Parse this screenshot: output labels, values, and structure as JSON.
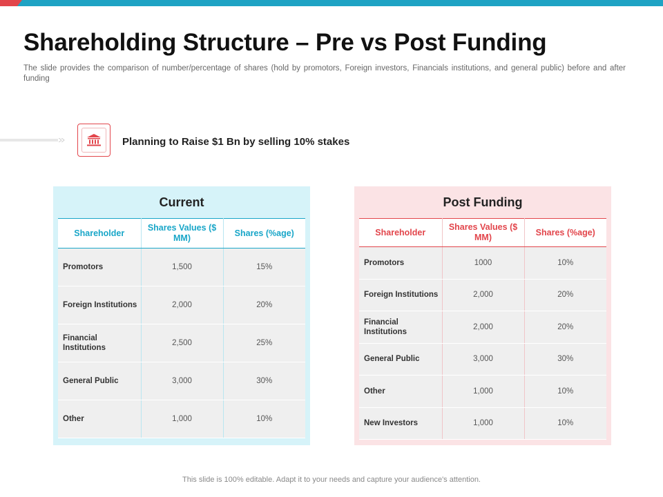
{
  "slide": {
    "title": "Shareholding Structure – Pre vs Post Funding",
    "subtitle": "The slide provides the comparison of number/percentage of shares (hold by promotors, Foreign investors, Financials institutions, and general public) before and after funding",
    "raise_text": "Planning to Raise $1 Bn by selling 10% stakes",
    "footer": "This slide is 100% editable. Adapt it to your needs and capture your audience's attention.",
    "icon": "bank-icon"
  },
  "colors": {
    "accent_blue": "#19a6c8",
    "accent_red": "#e2454b",
    "current_bg": "#d6f3f9",
    "post_bg": "#fbe3e5"
  },
  "current": {
    "title": "Current",
    "headers": [
      "Shareholder",
      "Shares Values ($ MM)",
      "Shares (%age)"
    ],
    "rows": [
      {
        "shareholder": "Promotors",
        "value": "1,500",
        "pct": "15%"
      },
      {
        "shareholder": "Foreign Institutions",
        "value": "2,000",
        "pct": "20%"
      },
      {
        "shareholder": "Financial Institutions",
        "value": "2,500",
        "pct": "25%"
      },
      {
        "shareholder": "General Public",
        "value": "3,000",
        "pct": "30%"
      },
      {
        "shareholder": "Other",
        "value": "1,000",
        "pct": "10%"
      }
    ]
  },
  "post": {
    "title": "Post Funding",
    "headers": [
      "Shareholder",
      "Shares Values ($ MM)",
      "Shares (%age)"
    ],
    "rows": [
      {
        "shareholder": "Promotors",
        "value": "1000",
        "pct": "10%"
      },
      {
        "shareholder": "Foreign Institutions",
        "value": "2,000",
        "pct": "20%"
      },
      {
        "shareholder": "Financial Institutions",
        "value": "2,000",
        "pct": "20%"
      },
      {
        "shareholder": "General Public",
        "value": "3,000",
        "pct": "30%"
      },
      {
        "shareholder": "Other",
        "value": "1,000",
        "pct": "10%"
      },
      {
        "shareholder": "New Investors",
        "value": "1,000",
        "pct": "10%"
      }
    ]
  }
}
